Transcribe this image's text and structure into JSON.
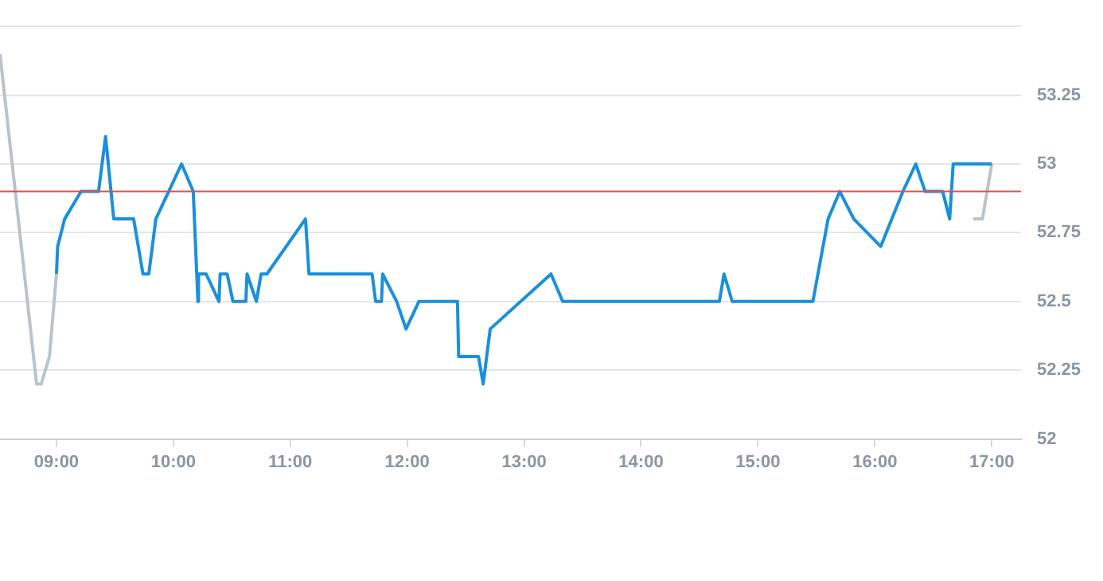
{
  "chart_data": {
    "type": "line",
    "xlim": [
      8.517,
      17.25
    ],
    "ylim": [
      52,
      53.5
    ],
    "xticks": [
      {
        "value": 9,
        "label": "09:00"
      },
      {
        "value": 10,
        "label": "10:00"
      },
      {
        "value": 11,
        "label": "11:00"
      },
      {
        "value": 12,
        "label": "12:00"
      },
      {
        "value": 13,
        "label": "13:00"
      },
      {
        "value": 14,
        "label": "14:00"
      },
      {
        "value": 15,
        "label": "15:00"
      },
      {
        "value": 16,
        "label": "16:00"
      },
      {
        "value": 17,
        "label": "17:00"
      }
    ],
    "yticks": [
      52,
      52.25,
      52.5,
      52.75,
      53,
      53.25,
      {
        "value": 53.5,
        "label": null
      }
    ],
    "grid": "y",
    "legend": false,
    "marker": "none",
    "ref_lines": [
      {
        "axis": "y",
        "value": 52.9,
        "color": "#d9534f"
      }
    ],
    "series": [
      {
        "color": "#b8c4cc",
        "x": [
          8.517,
          8.83,
          8.87,
          8.94,
          9.0
        ],
        "values": [
          53.4,
          52.2,
          52.2,
          52.3,
          52.6
        ]
      },
      {
        "color": "#1a8fdc",
        "x": [
          9.0,
          9.01,
          9.07,
          9.21,
          9.36,
          9.42,
          9.49,
          9.66,
          9.74,
          9.79,
          9.85,
          9.96,
          10.07,
          10.17,
          10.21,
          10.215,
          10.28,
          10.39,
          10.4,
          10.46,
          10.51,
          10.62,
          10.63,
          10.71,
          10.75,
          10.8,
          11.13,
          11.16,
          11.7,
          11.73,
          11.78,
          11.79,
          11.91,
          11.99,
          12.1,
          12.43,
          12.44,
          12.61,
          12.65,
          12.71,
          13.23,
          13.33,
          14.67,
          14.71,
          14.78,
          15.47,
          15.6,
          15.7,
          15.82,
          16.05,
          16.24,
          16.35,
          16.43,
          16.58,
          16.64,
          16.67,
          17.0
        ],
        "values": [
          52.6,
          52.7,
          52.8,
          52.9,
          52.9,
          53.1,
          52.8,
          52.8,
          52.6,
          52.6,
          52.8,
          52.9,
          53.0,
          52.9,
          52.5,
          52.6,
          52.6,
          52.5,
          52.6,
          52.6,
          52.5,
          52.5,
          52.6,
          52.5,
          52.6,
          52.6,
          52.8,
          52.6,
          52.6,
          52.5,
          52.5,
          52.6,
          52.5,
          52.4,
          52.5,
          52.5,
          52.3,
          52.3,
          52.2,
          52.4,
          52.6,
          52.5,
          52.5,
          52.6,
          52.5,
          52.5,
          52.8,
          52.9,
          52.8,
          52.7,
          52.9,
          53.0,
          52.9,
          52.9,
          52.8,
          53.0,
          53.0
        ]
      },
      {
        "color": "#b8c4cc",
        "x": [
          16.84,
          16.92,
          17.0
        ],
        "values": [
          52.8,
          52.8,
          53.0
        ]
      }
    ]
  }
}
